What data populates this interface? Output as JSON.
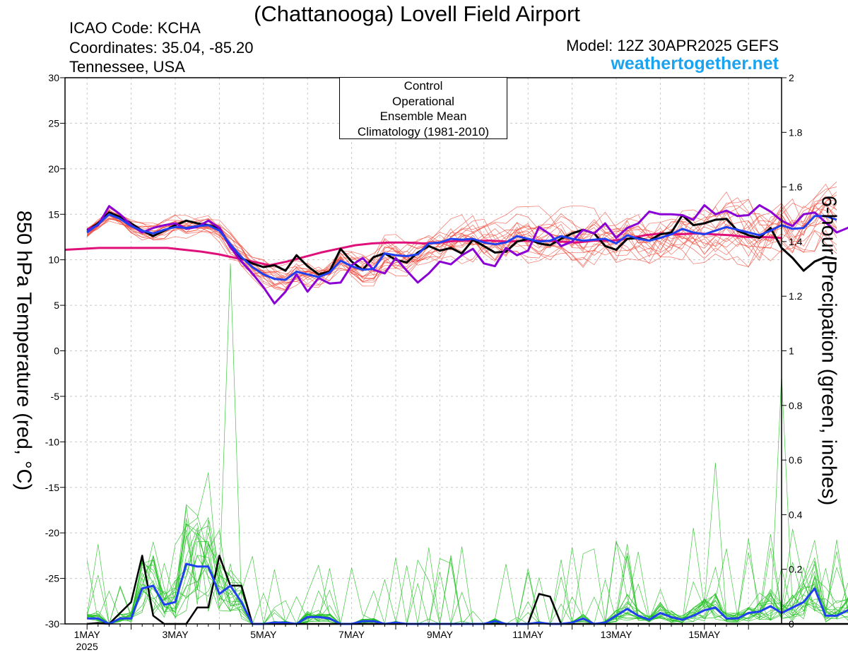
{
  "header": {
    "title": "(Chattanooga) Lovell Field Airport",
    "icao": "ICAO Code: KCHA",
    "coordinates": "Coordinates: 35.04, -85.20",
    "region": "Tennessee, USA",
    "model": "Model: 12Z 30APR2025 GEFS",
    "brand": "weathertogether.net"
  },
  "colors": {
    "control": "#000000",
    "operational": "#8a00d4",
    "ensemble_mean": "#2040f0",
    "climatology": "#e0107a",
    "temperature_members": "#f04030",
    "precip_members": "#20c020",
    "brand": "#1aa3f0",
    "grid": "#c8c8c8"
  },
  "chart_data": {
    "type": "line",
    "title": "(Chattanooga) Lovell Field Airport",
    "xlabel": "",
    "ylabel": "850 hPa Temperature (red, °C)",
    "ylabel_right": "6-hour Precipation (green, inches)",
    "x_ticks": [
      {
        "day": 1,
        "label": "1MAY",
        "sublabel": "2025"
      },
      {
        "day": 3,
        "label": "3MAY"
      },
      {
        "day": 5,
        "label": "5MAY"
      },
      {
        "day": 7,
        "label": "7MAY"
      },
      {
        "day": 9,
        "label": "9MAY"
      },
      {
        "day": 11,
        "label": "11MAY"
      },
      {
        "day": 13,
        "label": "13MAY"
      },
      {
        "day": 15,
        "label": "15MAY"
      }
    ],
    "x_step_days": 0.25,
    "xlim": [
      0.5,
      16.75
    ],
    "ylim": [
      -30,
      30
    ],
    "yticks": [
      -30,
      -25,
      -20,
      -15,
      -10,
      -5,
      0,
      5,
      10,
      15,
      20,
      25,
      30
    ],
    "ylim_right": [
      0,
      2
    ],
    "yticks_right": [
      0,
      0.2,
      0.4,
      0.6,
      0.8,
      1,
      1.2,
      1.4,
      1.6,
      1.8,
      2
    ],
    "ytick_labels_right": [
      "0",
      "0.2",
      "0.4",
      "0.6",
      "0.8",
      "1",
      "1.2",
      "1.4",
      "1.6",
      "1.8",
      "2"
    ],
    "grid": true,
    "legend_position": "top-center",
    "legend": [
      "Control",
      "Operational",
      "Ensemble Mean",
      "Climatology (1981-2010)"
    ],
    "series": [
      {
        "name": "Control",
        "axis": "temp",
        "width": 3,
        "values": [
          13.2,
          14.0,
          15.2,
          14.7,
          14.0,
          13.2,
          12.6,
          13.2,
          13.8,
          14.3,
          14.0,
          13.8,
          13.5,
          11.5,
          10.2,
          9.6,
          9.2,
          9.4,
          8.8,
          10.5,
          9.3,
          8.4,
          8.7,
          11.2,
          9.8,
          8.9,
          10.3,
          10.7,
          10.0,
          9.7,
          10.8,
          11.5,
          11.0,
          11.3,
          10.7,
          12.2,
          11.5,
          10.8,
          10.9,
          12.0,
          12.3,
          11.8,
          11.6,
          12.3,
          12.9,
          13.3,
          12.9,
          11.5,
          11.1,
          12.3,
          12.4,
          12.1,
          12.8,
          13.0,
          14.9,
          13.8,
          14.0,
          14.4,
          14.5,
          13.2,
          12.7,
          12.4,
          13.5,
          11.3,
          10.2,
          8.8,
          9.8,
          10.3,
          10.1
        ]
      },
      {
        "name": "Operational",
        "axis": "temp",
        "width": 3,
        "values": [
          13.3,
          13.8,
          15.9,
          15.0,
          13.8,
          13.0,
          13.5,
          13.8,
          14.0,
          13.4,
          13.6,
          14.3,
          13.5,
          11.4,
          9.8,
          8.5,
          7.0,
          5.2,
          6.5,
          8.4,
          6.5,
          8.0,
          7.4,
          7.5,
          9.4,
          10.2,
          8.9,
          8.5,
          10.2,
          8.8,
          7.5,
          8.5,
          9.8,
          9.5,
          10.5,
          11.2,
          9.6,
          9.3,
          11.3,
          10.5,
          11.0,
          13.6,
          12.8,
          11.5,
          12.0,
          13.3,
          12.9,
          14.0,
          12.4,
          13.5,
          14.0,
          15.3,
          15.0,
          15.0,
          14.9,
          14.4,
          16.0,
          15.0,
          15.4,
          14.8,
          14.9,
          16.0,
          15.3,
          14.3,
          13.7,
          15.0,
          15.2,
          14.1,
          13.0,
          13.5,
          14.2,
          14.5,
          15.5,
          15.9,
          15.8,
          13.0,
          10.0,
          6.0,
          7.0,
          6.5,
          5.8,
          6.6,
          7.0,
          5.6,
          7.5,
          7.0,
          7.9,
          7.0
        ]
      },
      {
        "name": "Ensemble Mean",
        "axis": "temp",
        "width": 3,
        "values": [
          13.0,
          13.9,
          15.0,
          14.5,
          13.7,
          13.2,
          12.9,
          13.3,
          13.6,
          13.5,
          13.7,
          13.8,
          13.2,
          11.7,
          10.3,
          9.2,
          8.4,
          7.9,
          7.8,
          8.7,
          8.4,
          8.1,
          8.6,
          9.9,
          9.3,
          8.9,
          9.0,
          10.7,
          10.5,
          10.4,
          10.6,
          11.8,
          11.9,
          12.3,
          12.2,
          12.3,
          11.9,
          11.7,
          11.9,
          12.6,
          12.3,
          12.0,
          12.1,
          12.6,
          12.3,
          12.1,
          12.2,
          12.3,
          11.8,
          12.7,
          12.3,
          12.1,
          12.4,
          12.8,
          13.4,
          13.0,
          12.8,
          13.2,
          13.6,
          13.3,
          13.0,
          12.7,
          13.2,
          13.8,
          13.4,
          13.5,
          14.8,
          14.8,
          14.4
        ]
      },
      {
        "name": "Climatology (1981-2010)",
        "axis": "temp",
        "width": 3,
        "values": [
          11.1,
          11.2,
          11.3,
          11.3,
          11.3,
          11.3,
          11.3,
          11.1,
          10.9,
          10.6,
          10.2,
          9.8,
          9.4,
          9.8,
          10.3,
          10.8,
          11.2,
          11.6,
          11.8,
          11.9,
          11.9,
          11.8,
          11.9,
          12.1,
          12.1,
          12.1,
          12.0,
          12.1,
          12.1,
          12.0,
          11.9,
          12.1,
          12.1,
          12.3,
          12.7,
          12.9,
          12.8,
          12.9,
          12.8,
          12.7,
          12.5,
          12.5,
          12.4
        ]
      },
      {
        "name": "Control",
        "axis": "precip",
        "width": 2.5,
        "values": [
          0,
          0.003,
          0,
          0.04,
          0.08,
          0.25,
          0.03,
          0,
          0,
          0,
          0.06,
          0.06,
          0.25,
          0.14,
          0.14,
          0,
          0,
          0,
          0,
          0,
          0,
          0,
          0,
          0,
          0,
          0,
          0,
          0,
          0,
          0,
          0,
          0,
          0,
          0,
          0,
          0,
          0,
          0,
          0,
          0,
          0,
          0.11,
          0.1,
          0,
          0,
          0,
          0,
          0,
          0,
          0,
          0,
          0,
          0,
          0,
          0,
          0,
          0,
          0,
          0,
          0,
          0,
          0,
          0,
          0,
          0,
          0,
          0,
          0,
          0,
          0,
          0,
          0,
          0,
          0,
          0,
          0,
          0,
          0,
          0,
          0,
          0,
          0,
          0,
          0,
          0,
          0,
          0,
          0,
          0,
          0,
          0,
          0,
          0,
          0,
          0,
          0,
          0,
          0,
          0,
          0,
          0,
          0,
          0,
          0,
          0,
          0,
          0,
          0,
          0,
          0,
          0,
          0,
          0,
          0,
          0,
          0,
          0,
          0,
          0,
          0,
          0,
          0,
          0,
          0,
          0,
          0,
          0,
          0,
          0,
          0,
          0,
          0,
          0,
          0,
          0,
          0,
          0,
          0,
          0,
          0,
          0,
          0,
          0,
          0,
          0,
          0,
          0,
          0,
          0.02,
          0,
          0,
          0.08,
          0.16,
          0.09,
          0.02,
          0,
          0,
          0,
          0,
          0,
          0
        ]
      },
      {
        "name": "Ensemble Mean",
        "axis": "precip",
        "width": 3,
        "values": [
          0.02,
          0.02,
          0,
          0.02,
          0.02,
          0.13,
          0.14,
          0.07,
          0.08,
          0.22,
          0.21,
          0.21,
          0.11,
          0.14,
          0.08,
          0,
          0,
          0.005,
          0.005,
          0,
          0.025,
          0.025,
          0.02,
          0,
          0,
          0.01,
          0.01,
          0,
          0.005,
          0,
          0,
          0,
          0,
          0,
          0,
          0,
          0,
          0.01,
          0,
          0,
          0,
          0.005,
          0,
          0,
          0.005,
          0.02,
          0,
          0.005,
          0.03,
          0.055,
          0.03,
          0.015,
          0.04,
          0.025,
          0.015,
          0.03,
          0.05,
          0.06,
          0.02,
          0.02,
          0.04,
          0.045,
          0.065,
          0.04,
          0.06,
          0.08,
          0.13,
          0.03,
          0.03,
          0.05,
          0.07,
          0.02,
          0,
          0,
          0.01,
          0.05
        ]
      }
    ]
  }
}
